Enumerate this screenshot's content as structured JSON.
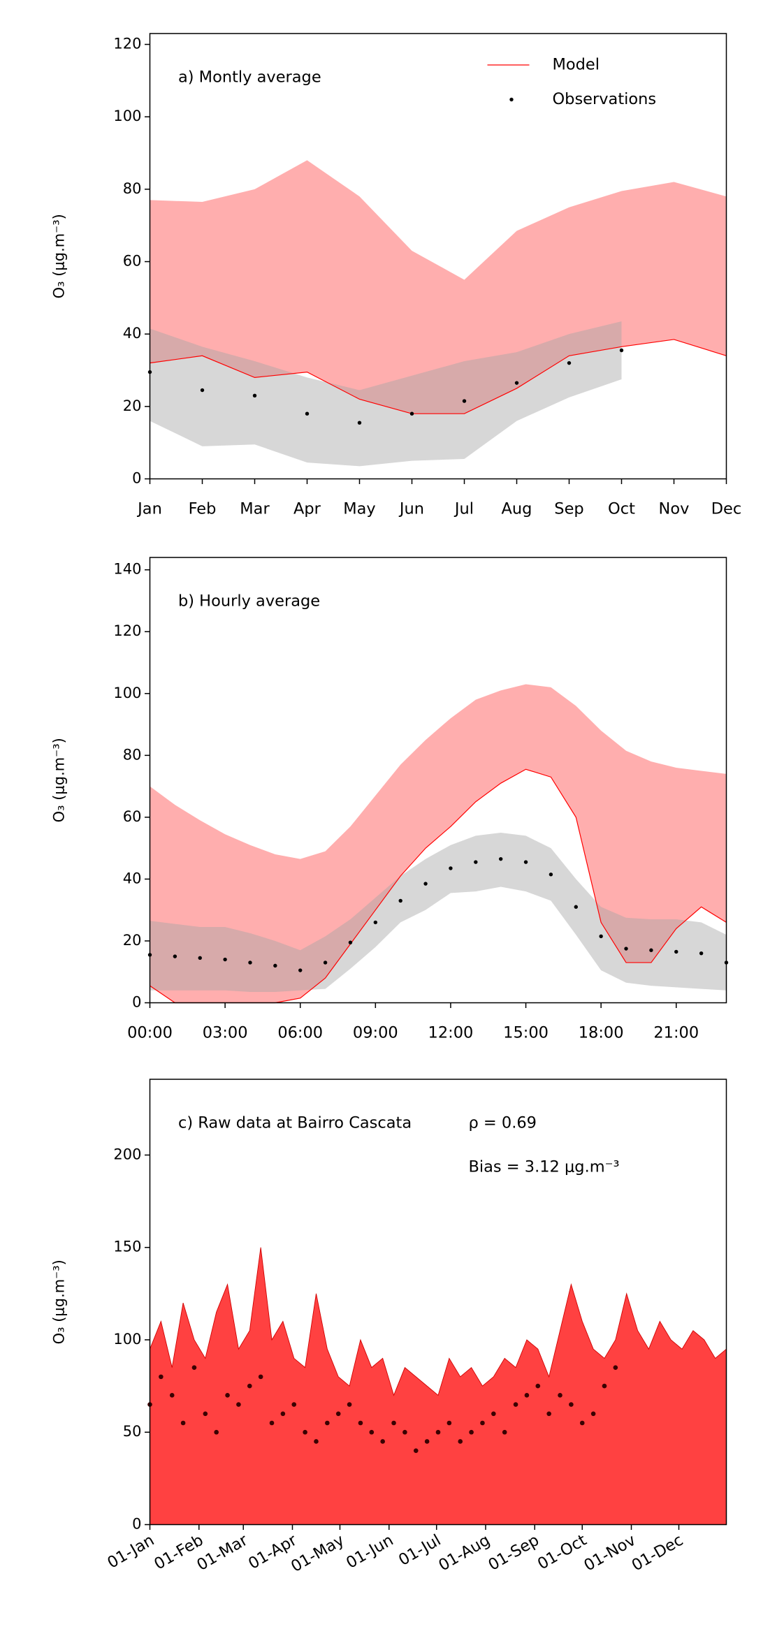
{
  "chart_data": [
    {
      "type": "line",
      "title": "a) Montly average",
      "ylabel": "O₃ (μg.m⁻³)",
      "categories": [
        "Jan",
        "Feb",
        "Mar",
        "Apr",
        "May",
        "Jun",
        "Jul",
        "Aug",
        "Sep",
        "Oct",
        "Nov",
        "Dec"
      ],
      "ylim": [
        0,
        123
      ],
      "yticks": [
        0,
        20,
        40,
        60,
        80,
        100,
        120
      ],
      "legend": "upper right",
      "series": [
        {
          "name": "Model",
          "color": "#ff0000",
          "band_color": "#ff6b6b",
          "values": [
            32,
            34,
            28,
            29.5,
            22,
            18,
            18,
            25,
            34,
            36.5,
            38.5,
            34
          ],
          "band_upper": [
            77,
            76.5,
            80,
            88,
            78,
            63,
            55,
            68.5,
            75,
            79.5,
            82,
            78
          ]
        },
        {
          "name": "Observations",
          "color": "#000000",
          "band_color": "#a6a6a6",
          "values": [
            29.5,
            24.5,
            23,
            18,
            15.5,
            18,
            21.5,
            26.5,
            32,
            35.5,
            null,
            null
          ],
          "band_lower": [
            16,
            9,
            9.5,
            4.5,
            3.5,
            5,
            5.5,
            16,
            22.5,
            27.5,
            null,
            null
          ],
          "band_upper": [
            41.5,
            36.5,
            32.5,
            28,
            24.5,
            28.5,
            32.5,
            35,
            40,
            43.5,
            null,
            null
          ]
        }
      ]
    },
    {
      "type": "line",
      "title": "b) Hourly average",
      "ylabel": "O₃ (μg.m⁻³)",
      "x": [
        0,
        1,
        2,
        3,
        4,
        5,
        6,
        7,
        8,
        9,
        10,
        11,
        12,
        13,
        14,
        15,
        16,
        17,
        18,
        19,
        20,
        21,
        22,
        23
      ],
      "xlim": [
        0,
        23
      ],
      "xticks": [
        {
          "value": 0,
          "label": "00:00"
        },
        {
          "value": 3,
          "label": "03:00"
        },
        {
          "value": 6,
          "label": "06:00"
        },
        {
          "value": 9,
          "label": "09:00"
        },
        {
          "value": 12,
          "label": "12:00"
        },
        {
          "value": 15,
          "label": "15:00"
        },
        {
          "value": 18,
          "label": "18:00"
        },
        {
          "value": 21,
          "label": "21:00"
        }
      ],
      "ylim": [
        0,
        144
      ],
      "yticks": [
        0,
        20,
        40,
        60,
        80,
        100,
        120,
        140
      ],
      "series": [
        {
          "color": "#ff0000",
          "band_color": "#ff6b6b",
          "values": [
            5.5,
            0,
            0,
            0,
            0,
            0,
            1.5,
            8,
            19,
            30,
            41,
            50,
            57,
            65,
            71,
            75.5,
            73,
            60,
            26,
            13,
            13,
            24,
            31,
            26
          ],
          "band_upper": [
            70,
            64,
            59,
            54.5,
            51,
            48,
            46.5,
            49,
            57,
            67,
            77,
            85,
            92,
            98,
            101,
            103,
            102,
            96,
            88,
            81.5,
            78,
            76,
            75,
            74
          ]
        },
        {
          "color": "#000000",
          "band_color": "#a6a6a6",
          "values": [
            15.5,
            15,
            14.5,
            14,
            13,
            12,
            10.5,
            13,
            19.5,
            26,
            33,
            38.5,
            43.5,
            45.5,
            46.5,
            45.5,
            41.5,
            31,
            21.5,
            17.5,
            17,
            16.5,
            16,
            13
          ],
          "band_lower": [
            4,
            4,
            4,
            4,
            3.5,
            3.5,
            4,
            4.5,
            11,
            18,
            26,
            30,
            35.5,
            36,
            37.5,
            36,
            33,
            22,
            10.5,
            6.5,
            5.5,
            5,
            4.5,
            4
          ],
          "band_upper": [
            26.5,
            25.5,
            24.5,
            24.5,
            22.5,
            20,
            17,
            21.5,
            27,
            34,
            41,
            46.5,
            51,
            54,
            55,
            54,
            50,
            40,
            31,
            27.5,
            27,
            27,
            26,
            22
          ]
        }
      ]
    },
    {
      "type": "area",
      "title": "c) Raw data at Bairro Cascata",
      "ylabel": "O₃ (μg.m⁻³)",
      "annotations": [
        "ρ = 0.69",
        "Bias = 3.12 μg.m⁻³"
      ],
      "xlim": [
        0,
        364
      ],
      "xticks": [
        {
          "value": 0,
          "label": "01-Jan"
        },
        {
          "value": 31,
          "label": "01-Feb"
        },
        {
          "value": 59,
          "label": "01-Mar"
        },
        {
          "value": 90,
          "label": "01-Apr"
        },
        {
          "value": 120,
          "label": "01-May"
        },
        {
          "value": 151,
          "label": "01-Jun"
        },
        {
          "value": 181,
          "label": "01-Jul"
        },
        {
          "value": 212,
          "label": "01-Aug"
        },
        {
          "value": 243,
          "label": "01-Sep"
        },
        {
          "value": 273,
          "label": "01-Oct"
        },
        {
          "value": 304,
          "label": "01-Nov"
        },
        {
          "value": 334,
          "label": "01-Dec"
        }
      ],
      "ylim": [
        0,
        241
      ],
      "yticks": [
        0,
        50,
        100,
        150,
        200
      ],
      "series": [
        {
          "color": "#ff2020",
          "x": [
            0,
            7,
            14,
            21,
            28,
            35,
            42,
            49,
            56,
            63,
            70,
            77,
            84,
            91,
            98,
            105,
            112,
            119,
            126,
            133,
            140,
            147,
            154,
            161,
            168,
            175,
            182,
            189,
            196,
            203,
            210,
            217,
            224,
            231,
            238,
            245,
            252,
            259,
            266,
            273,
            280,
            287,
            294,
            301,
            308,
            315,
            322,
            329,
            336,
            343,
            350,
            357,
            364
          ],
          "values": [
            95,
            110,
            85,
            120,
            100,
            90,
            115,
            130,
            95,
            105,
            150,
            100,
            110,
            90,
            85,
            125,
            95,
            80,
            75,
            100,
            85,
            90,
            70,
            85,
            80,
            75,
            70,
            90,
            80,
            85,
            75,
            80,
            90,
            85,
            100,
            95,
            80,
            105,
            130,
            110,
            95,
            90,
            100,
            125,
            105,
            95,
            110,
            100,
            95,
            105,
            100,
            90,
            95
          ]
        },
        {
          "color": "#3a0000",
          "x": [
            0,
            7,
            14,
            21,
            28,
            35,
            42,
            49,
            56,
            63,
            70,
            77,
            84,
            91,
            98,
            105,
            112,
            119,
            126,
            133,
            140,
            147,
            154,
            161,
            168,
            175,
            182,
            189,
            196,
            203,
            210,
            217,
            224,
            231,
            238,
            245,
            252,
            259,
            266,
            273,
            280,
            287,
            294
          ],
          "values": [
            65,
            80,
            70,
            55,
            85,
            60,
            50,
            70,
            65,
            75,
            80,
            55,
            60,
            65,
            50,
            45,
            55,
            60,
            65,
            55,
            50,
            45,
            55,
            50,
            40,
            45,
            50,
            55,
            45,
            50,
            55,
            60,
            50,
            65,
            70,
            75,
            60,
            70,
            65,
            55,
            60,
            75,
            85
          ]
        }
      ]
    }
  ]
}
